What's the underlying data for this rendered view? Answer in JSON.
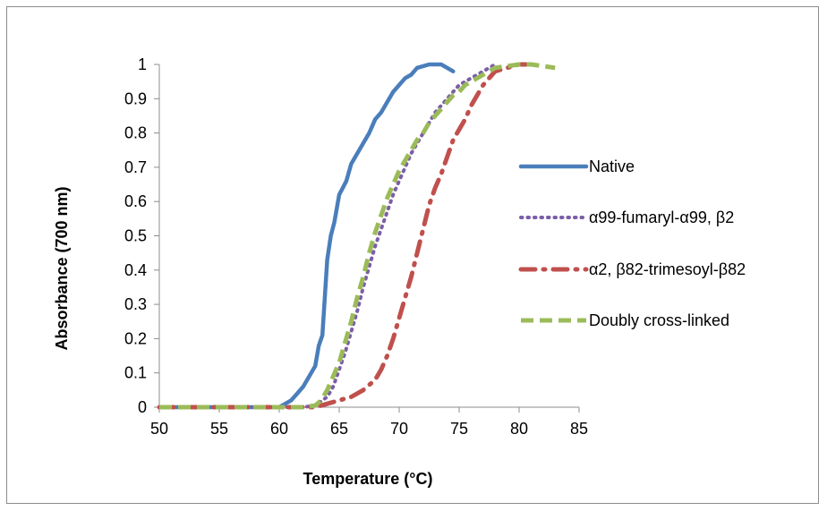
{
  "chart_data": {
    "type": "line",
    "xlabel": "Temperature (°C)",
    "ylabel": "Absorbance (700 nm)",
    "xlim": [
      50,
      85
    ],
    "ylim": [
      0,
      1
    ],
    "xticks": [
      50,
      55,
      60,
      65,
      70,
      75,
      80,
      85
    ],
    "yticks": [
      0,
      0.1,
      0.2,
      0.3,
      0.4,
      0.5,
      0.6,
      0.7,
      0.8,
      0.9,
      1
    ],
    "grid": false,
    "legend_position": "right",
    "series": [
      {
        "name": "Native",
        "color": "#4a7ebb",
        "style": "solid",
        "x": [
          50,
          55,
          60,
          60.5,
          61,
          61.5,
          62,
          62.5,
          63,
          63.3,
          63.6,
          63.8,
          64,
          64.3,
          64.6,
          65,
          65.3,
          65.6,
          66,
          66.5,
          67,
          67.5,
          68,
          68.5,
          69,
          69.5,
          70,
          70.5,
          71,
          71.5,
          72,
          72.5,
          73,
          73.5,
          74,
          74.5
        ],
        "y": [
          0,
          0,
          0,
          0.01,
          0.02,
          0.04,
          0.06,
          0.09,
          0.12,
          0.18,
          0.21,
          0.32,
          0.43,
          0.5,
          0.54,
          0.62,
          0.64,
          0.66,
          0.71,
          0.74,
          0.77,
          0.8,
          0.84,
          0.86,
          0.89,
          0.92,
          0.94,
          0.96,
          0.97,
          0.99,
          0.995,
          1.0,
          1.0,
          1.0,
          0.99,
          0.98
        ]
      },
      {
        "name": "α99-fumaryl-α99, β2",
        "color": "#7b5ea7",
        "style": "dotted",
        "x": [
          50,
          55,
          60,
          62,
          63,
          64,
          64.5,
          65,
          65.5,
          66,
          66.5,
          67,
          67.5,
          68,
          68.5,
          69,
          69.5,
          70,
          70.5,
          71,
          71.5,
          72,
          72.5,
          73,
          73.5,
          74,
          74.5,
          75,
          75.5,
          76,
          76.5,
          77,
          77.5,
          78
        ],
        "y": [
          0,
          0,
          0,
          0,
          0.005,
          0.03,
          0.06,
          0.11,
          0.16,
          0.22,
          0.28,
          0.35,
          0.41,
          0.47,
          0.52,
          0.57,
          0.62,
          0.66,
          0.7,
          0.74,
          0.77,
          0.8,
          0.83,
          0.86,
          0.88,
          0.9,
          0.92,
          0.94,
          0.95,
          0.96,
          0.97,
          0.98,
          0.99,
          1.0
        ]
      },
      {
        "name": "α2, β82-trimesoyl-β82",
        "color": "#c0504d",
        "style": "dashdot",
        "x": [
          50,
          55,
          60,
          63,
          64,
          65,
          66,
          67,
          68,
          68.5,
          69,
          69.5,
          70,
          70.5,
          71,
          71.5,
          72,
          72.5,
          73,
          73.5,
          74,
          74.5,
          75,
          75.5,
          76,
          76.5,
          77,
          77.5,
          78,
          79,
          80,
          81
        ],
        "y": [
          0,
          0,
          0,
          0,
          0.01,
          0.02,
          0.03,
          0.05,
          0.08,
          0.11,
          0.15,
          0.2,
          0.26,
          0.32,
          0.38,
          0.45,
          0.52,
          0.59,
          0.64,
          0.68,
          0.73,
          0.78,
          0.81,
          0.84,
          0.88,
          0.91,
          0.94,
          0.96,
          0.98,
          0.99,
          1.0,
          1.0
        ]
      },
      {
        "name": "Doubly cross-linked",
        "color": "#9bbb59",
        "style": "dashed",
        "x": [
          50,
          55,
          60,
          62,
          63,
          63.5,
          64,
          64.5,
          65,
          65.5,
          66,
          66.5,
          67,
          67.5,
          68,
          68.5,
          69,
          69.5,
          70,
          70.5,
          71,
          71.5,
          72,
          72.5,
          73,
          73.5,
          74,
          74.5,
          75,
          75.5,
          76,
          77,
          78,
          79,
          80,
          81,
          82,
          83
        ],
        "y": [
          0,
          0,
          0,
          0,
          0.005,
          0.02,
          0.05,
          0.09,
          0.13,
          0.19,
          0.25,
          0.32,
          0.38,
          0.45,
          0.51,
          0.56,
          0.61,
          0.65,
          0.69,
          0.72,
          0.75,
          0.78,
          0.8,
          0.83,
          0.85,
          0.87,
          0.89,
          0.91,
          0.92,
          0.94,
          0.95,
          0.97,
          0.99,
          0.995,
          1.0,
          1.0,
          0.995,
          0.99
        ]
      }
    ]
  }
}
